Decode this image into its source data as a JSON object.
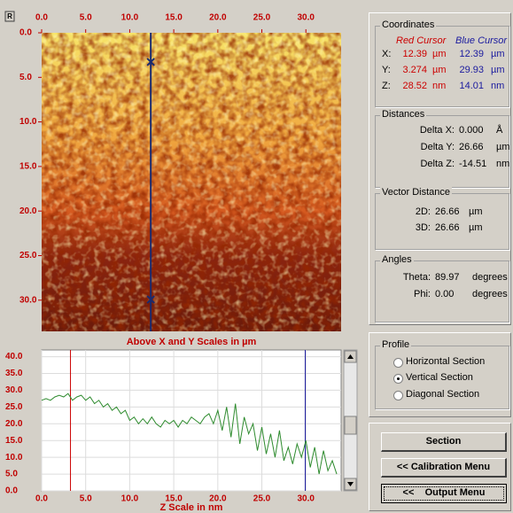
{
  "image_panel": {
    "button": "R",
    "xlim": [
      0,
      34
    ],
    "ylim": [
      0,
      33.5
    ],
    "xticks": [
      {
        "value": 0,
        "label": "0.0"
      },
      {
        "value": 5,
        "label": "5.0"
      },
      {
        "value": 10,
        "label": "10.0"
      },
      {
        "value": 15,
        "label": "15.0"
      },
      {
        "value": 20,
        "label": "20.0"
      },
      {
        "value": 25,
        "label": "25.0"
      },
      {
        "value": 30,
        "label": "30.0"
      }
    ],
    "yticks": [
      {
        "value": 0,
        "label": "0.0"
      },
      {
        "value": 5,
        "label": "5.0"
      },
      {
        "value": 10,
        "label": "10.0"
      },
      {
        "value": 15,
        "label": "15.0"
      },
      {
        "value": 20,
        "label": "20.0"
      },
      {
        "value": 25,
        "label": "25.0"
      },
      {
        "value": 30,
        "label": "30.0"
      }
    ],
    "caption": "Above X and Y Scales in µm"
  },
  "chart_data": {
    "type": "line",
    "x_label": "Z Scale in nm",
    "xlim": [
      0,
      34
    ],
    "ylim": [
      0,
      42
    ],
    "xticks": [
      {
        "value": 0,
        "label": "0.0"
      },
      {
        "value": 5,
        "label": "5.0"
      },
      {
        "value": 10,
        "label": "10.0"
      },
      {
        "value": 15,
        "label": "15.0"
      },
      {
        "value": 20,
        "label": "20.0"
      },
      {
        "value": 25,
        "label": "25.0"
      },
      {
        "value": 30,
        "label": "30.0"
      }
    ],
    "yticks": [
      {
        "value": 0,
        "label": "0.0"
      },
      {
        "value": 5,
        "label": "5.0"
      },
      {
        "value": 10,
        "label": "10.0"
      },
      {
        "value": 15,
        "label": "15.0"
      },
      {
        "value": 20,
        "label": "20.0"
      },
      {
        "value": 25,
        "label": "25.0"
      },
      {
        "value": 30,
        "label": "30.0"
      },
      {
        "value": 35,
        "label": "35.0"
      },
      {
        "value": 40,
        "label": "40.0"
      }
    ],
    "grid": true,
    "x": [
      0,
      0.5,
      1,
      1.5,
      2,
      2.5,
      3,
      3.5,
      4,
      4.5,
      5,
      5.5,
      6,
      6.5,
      7,
      7.5,
      8,
      8.5,
      9,
      9.5,
      10,
      10.5,
      11,
      11.5,
      12,
      12.5,
      13,
      13.5,
      14,
      14.5,
      15,
      15.5,
      16,
      16.5,
      17,
      17.5,
      18,
      18.5,
      19,
      19.5,
      20,
      20.5,
      21,
      21.5,
      22,
      22.5,
      23,
      23.5,
      24,
      24.5,
      25,
      25.5,
      26,
      26.5,
      27,
      27.5,
      28,
      28.5,
      29,
      29.5,
      30,
      30.5,
      31,
      31.5,
      32,
      32.5,
      33,
      33.5
    ],
    "series": [
      {
        "color": "#2e8b2e",
        "values": [
          27,
          27.5,
          27,
          28,
          28.5,
          28,
          29,
          27,
          28,
          28.5,
          27,
          28,
          26,
          27,
          25,
          26,
          24,
          25,
          23,
          24,
          21,
          22,
          20,
          21.5,
          20,
          22,
          20,
          19,
          21,
          20,
          21,
          19,
          21,
          20,
          22,
          21,
          20,
          22,
          23,
          20,
          24,
          18,
          25,
          16,
          26,
          14,
          22,
          17,
          20,
          12,
          19,
          11,
          17,
          10,
          18,
          9,
          13,
          8,
          14,
          10,
          15,
          7,
          13,
          5,
          12,
          6,
          9,
          5
        ]
      }
    ]
  },
  "coordinates": {
    "title": "Coordinates",
    "red_header": "Red Cursor",
    "blue_header": "Blue Cursor",
    "red_color": "#cc0000",
    "blue_color": "#1a1a9e",
    "rows": [
      {
        "label": "X:",
        "red": 12.39,
        "red_unit": "µm",
        "blue": 12.39,
        "blue_unit": "µm"
      },
      {
        "label": "Y:",
        "red": 3.274,
        "red_unit": "µm",
        "blue": 29.93,
        "blue_unit": "µm"
      },
      {
        "label": "Z:",
        "red": 28.52,
        "red_unit": "nm",
        "blue": 14.01,
        "blue_unit": "nm"
      }
    ]
  },
  "distances": {
    "title": "Distances",
    "rows": [
      {
        "label": "Delta X:",
        "value": "0.000",
        "unit": "Å"
      },
      {
        "label": "Delta Y:",
        "value": "26.66",
        "unit": "µm"
      },
      {
        "label": "Delta Z:",
        "value": "-14.51",
        "unit": "nm"
      }
    ]
  },
  "vector_distance": {
    "title": "Vector Distance",
    "rows": [
      {
        "label": "2D:",
        "value": "26.66",
        "unit": "µm"
      },
      {
        "label": "3D:",
        "value": "26.66",
        "unit": "µm"
      }
    ]
  },
  "angles": {
    "title": "Angles",
    "rows": [
      {
        "label": "Theta:",
        "value": "89.97",
        "unit": "degrees"
      },
      {
        "label": "Phi:",
        "value": "0.00",
        "unit": "degrees"
      }
    ]
  },
  "profile": {
    "title": "Profile",
    "options": [
      "Horizontal Section",
      "Vertical Section",
      "Diagonal Section"
    ],
    "selected": 1
  },
  "buttons": [
    "Section",
    "<< Calibration Menu",
    "<<    Output Menu"
  ]
}
